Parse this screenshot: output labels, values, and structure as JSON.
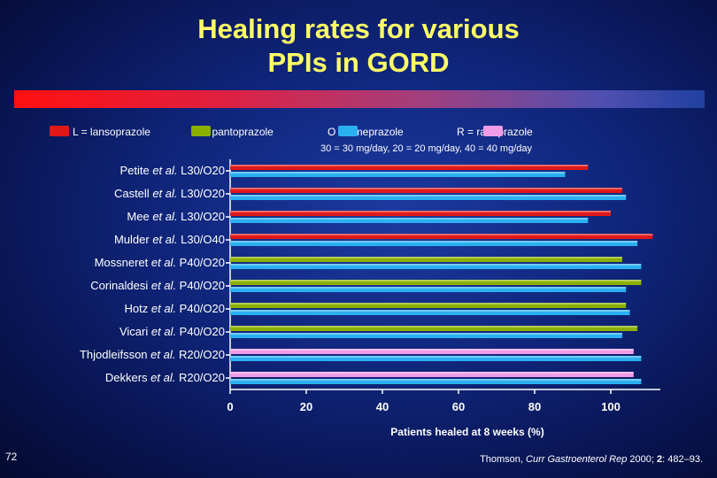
{
  "slide": {
    "title_line1": "Healing rates for various",
    "title_line2": "PPIs in GORD",
    "page_number": "72",
    "citation_prefix": "Thomson, ",
    "citation_journal": "Curr Gastroenterol Rep",
    "citation_year": " 2000; ",
    "citation_volume": "2",
    "citation_pages": ": 482–93."
  },
  "legend": {
    "items": [
      {
        "label": "L = lansoprazole",
        "color": "#e01818"
      },
      {
        "label": "P = pantoprazole",
        "color": "#8bb000"
      },
      {
        "label": "O = omeprazole",
        "color": "#2ab0f0"
      },
      {
        "label": "R = rabeprazole",
        "color": "#f09ce8"
      }
    ],
    "dose_note": "30 = 30 mg/day, 20 = 20 mg/day, 40 = 40 mg/day"
  },
  "colors": {
    "lansoprazole": "#e01818",
    "pantoprazole": "#8bb000",
    "omeprazole": "#2ab0f0",
    "rabeprazole": "#f09ce8",
    "axis": "#ffffff"
  },
  "chart_data": {
    "type": "bar",
    "orientation": "horizontal",
    "title": "Healing rates for various PPIs in GORD",
    "xlabel": "Patients healed at 8 weeks (%)",
    "ylabel": "",
    "xlim": [
      0,
      110
    ],
    "xticks": [
      0,
      20,
      40,
      60,
      80,
      100
    ],
    "legend_position": "top",
    "categories": [
      {
        "author": "Petite",
        "etal": true,
        "doses": "L30/O20",
        "bars": [
          {
            "drug": "lansoprazole",
            "value": 94
          },
          {
            "drug": "omeprazole",
            "value": 88
          }
        ]
      },
      {
        "author": "Castell",
        "etal": true,
        "doses": "L30/O20",
        "bars": [
          {
            "drug": "lansoprazole",
            "value": 103
          },
          {
            "drug": "omeprazole",
            "value": 104
          }
        ]
      },
      {
        "author": "Mee",
        "etal": true,
        "doses": "L30/O20",
        "bars": [
          {
            "drug": "lansoprazole",
            "value": 100
          },
          {
            "drug": "omeprazole",
            "value": 94
          }
        ]
      },
      {
        "author": "Mulder",
        "etal": true,
        "doses": "L30/O40",
        "bars": [
          {
            "drug": "lansoprazole",
            "value": 111
          },
          {
            "drug": "omeprazole",
            "value": 107
          }
        ]
      },
      {
        "author": "Mossneret",
        "etal": true,
        "doses": "P40/O20",
        "bars": [
          {
            "drug": "pantoprazole",
            "value": 103
          },
          {
            "drug": "omeprazole",
            "value": 108
          }
        ]
      },
      {
        "author": "Corinaldesi",
        "etal": true,
        "doses": "P40/O20",
        "bars": [
          {
            "drug": "pantoprazole",
            "value": 108
          },
          {
            "drug": "omeprazole",
            "value": 104
          }
        ]
      },
      {
        "author": "Hotz",
        "etal": true,
        "doses": "P40/O20",
        "bars": [
          {
            "drug": "pantoprazole",
            "value": 104
          },
          {
            "drug": "omeprazole",
            "value": 105
          }
        ]
      },
      {
        "author": "Vicari",
        "etal": true,
        "doses": "P40/O20",
        "bars": [
          {
            "drug": "pantoprazole",
            "value": 107
          },
          {
            "drug": "omeprazole",
            "value": 103
          }
        ]
      },
      {
        "author": "Thjodleifsson",
        "etal": true,
        "doses": "R20/O20",
        "bars": [
          {
            "drug": "rabeprazole",
            "value": 106
          },
          {
            "drug": "omeprazole",
            "value": 108
          }
        ]
      },
      {
        "author": "Dekkers",
        "etal": true,
        "doses": "R20/O20",
        "bars": [
          {
            "drug": "rabeprazole",
            "value": 106
          },
          {
            "drug": "omeprazole",
            "value": 108
          }
        ]
      }
    ]
  }
}
